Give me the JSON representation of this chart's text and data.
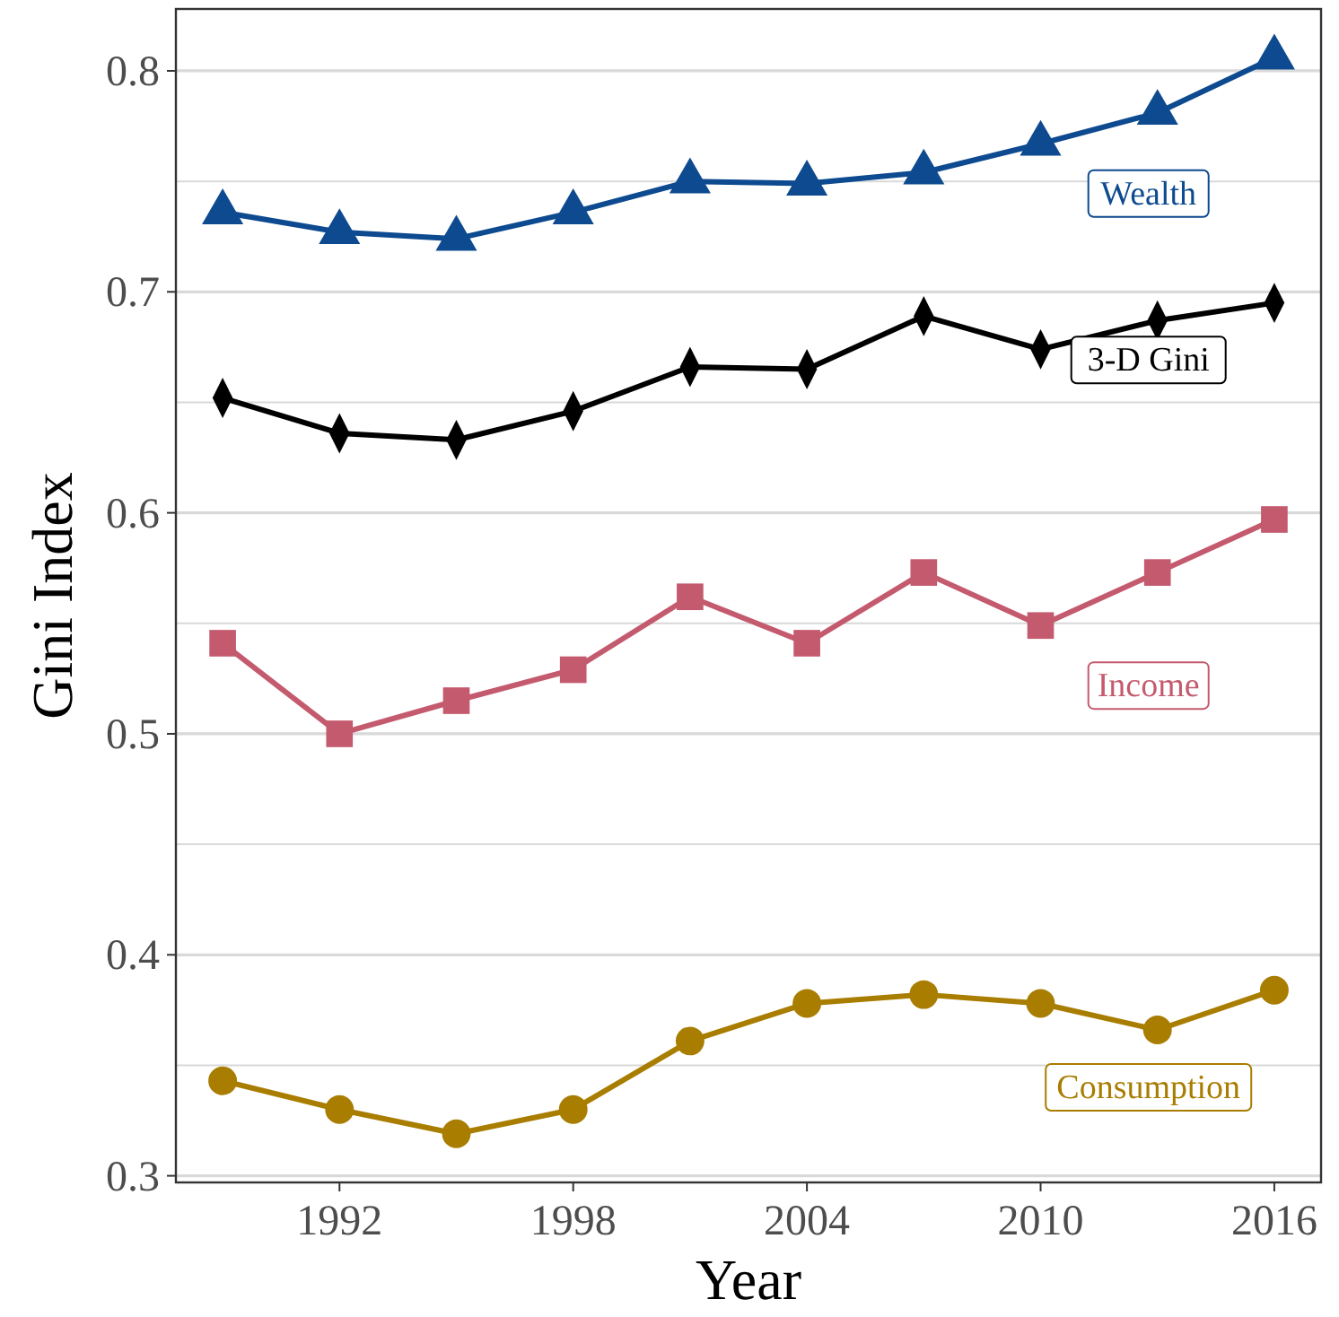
{
  "chart_data": {
    "type": "line",
    "xlabel": "Year",
    "ylabel": "Gini Index",
    "x": [
      1989,
      1992,
      1995,
      1998,
      2001,
      2004,
      2007,
      2010,
      2013,
      2016
    ],
    "xlim": [
      1987.8,
      2017.2
    ],
    "xticks": [
      1992,
      1998,
      2004,
      2010,
      2016
    ],
    "ylim": [
      0.297,
      0.828
    ],
    "yticks": [
      {
        "value": 0.3,
        "label": "0.3"
      },
      {
        "value": 0.35,
        "label": null
      },
      {
        "value": 0.4,
        "label": "0.4"
      },
      {
        "value": 0.45,
        "label": null
      },
      {
        "value": 0.5,
        "label": "0.5"
      },
      {
        "value": 0.55,
        "label": null
      },
      {
        "value": 0.6,
        "label": "0.6"
      },
      {
        "value": 0.65,
        "label": null
      },
      {
        "value": 0.7,
        "label": "0.7"
      },
      {
        "value": 0.75,
        "label": null
      },
      {
        "value": 0.8,
        "label": "0.8"
      }
    ],
    "grid": "y",
    "line_style": "solid",
    "series": [
      {
        "name": "Wealth",
        "color": "#0d4a8f",
        "marker": "triangle",
        "values": [
          0.736,
          0.727,
          0.724,
          0.736,
          0.75,
          0.749,
          0.754,
          0.767,
          0.781,
          0.806
        ]
      },
      {
        "name": "3-D Gini",
        "color": "#000000",
        "marker": "diamond",
        "values": [
          0.652,
          0.636,
          0.633,
          0.646,
          0.666,
          0.665,
          0.689,
          0.674,
          0.687,
          0.695
        ]
      },
      {
        "name": "Income",
        "color": "#c45a6e",
        "marker": "square",
        "values": [
          0.541,
          0.5,
          0.515,
          0.529,
          0.562,
          0.541,
          0.573,
          0.549,
          0.573,
          0.597
        ]
      },
      {
        "name": "Consumption",
        "color": "#a87d00",
        "marker": "circle",
        "values": [
          0.343,
          0.33,
          0.319,
          0.33,
          0.361,
          0.378,
          0.382,
          0.378,
          0.366,
          0.384
        ]
      }
    ]
  }
}
